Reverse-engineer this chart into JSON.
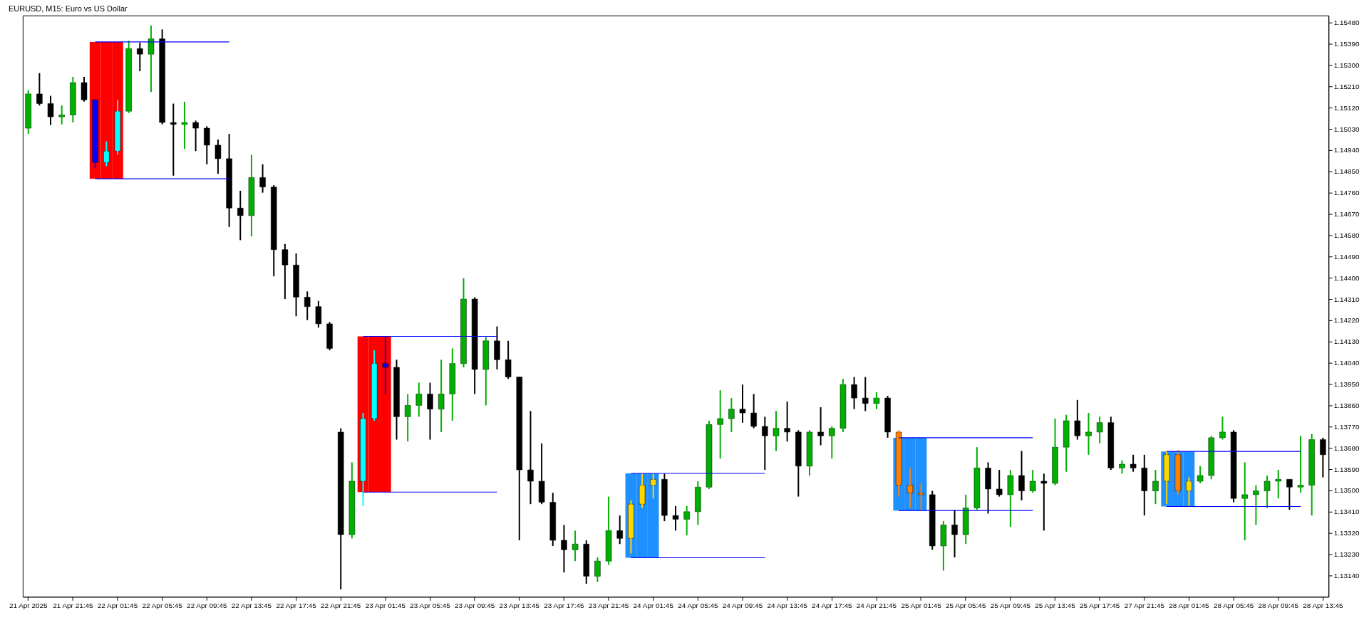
{
  "chart_data": {
    "type": "candlestick",
    "title": "EURUSD, M15:  Euro vs US Dollar",
    "ylim": [
      1.1305,
      1.1551
    ],
    "categories": [
      "21 Apr 2025",
      null,
      null,
      null,
      "21 Apr 21:45",
      null,
      null,
      null,
      "22 Apr 01:45",
      null,
      null,
      null,
      "22 Apr 05:45",
      null,
      null,
      null,
      "22 Apr 09:45",
      null,
      null,
      null,
      "22 Apr 13:45",
      null,
      null,
      null,
      "22 Apr 17:45",
      null,
      null,
      null,
      "22 Apr 21:45",
      null,
      null,
      null,
      "23 Apr 01:45",
      null,
      null,
      null,
      "23 Apr 05:45",
      null,
      null,
      null,
      "23 Apr 09:45",
      null,
      null,
      null,
      "23 Apr 13:45",
      null,
      null,
      null,
      "23 Apr 17:45",
      null,
      null,
      null,
      "23 Apr 21:45",
      null,
      null,
      null,
      "24 Apr 01:45",
      null,
      null,
      null,
      "24 Apr 05:45",
      null,
      null,
      null,
      "24 Apr 09:45",
      null,
      null,
      null,
      "24 Apr 13:45",
      null,
      null,
      null,
      "24 Apr 17:45",
      null,
      null,
      null,
      "24 Apr 21:45",
      null,
      null,
      null,
      "25 Apr 01:45",
      null,
      null,
      null,
      "25 Apr 05:45",
      null,
      null,
      null,
      "25 Apr 09:45",
      null,
      null,
      null,
      "25 Apr 13:45",
      null,
      null,
      null,
      "25 Apr 17:45",
      null,
      null,
      null,
      "27 Apr 21:45",
      null,
      null,
      null,
      "28 Apr 01:45",
      null,
      null,
      null,
      "28 Apr 05:45",
      null,
      null,
      null,
      "28 Apr 09:45",
      null,
      null,
      null,
      "28 Apr 13:45"
    ],
    "yticks": [
      {
        "value": 1.1314,
        "label": "1.13140"
      },
      {
        "value": 1.1323,
        "label": "1.13230"
      },
      {
        "value": 1.1332,
        "label": "1.13320"
      },
      {
        "value": 1.1341,
        "label": "1.13410"
      },
      {
        "value": 1.135,
        "label": "1.13500"
      },
      {
        "value": 1.1359,
        "label": "1.13590"
      },
      {
        "value": 1.1368,
        "label": "1.13680"
      },
      {
        "value": 1.1377,
        "label": "1.13770"
      },
      {
        "value": 1.1386,
        "label": "1.13860"
      },
      {
        "value": 1.1395,
        "label": "1.13950"
      },
      {
        "value": 1.1404,
        "label": "1.14040"
      },
      {
        "value": 1.1413,
        "label": "1.14130"
      },
      {
        "value": 1.1422,
        "label": "1.14220"
      },
      {
        "value": 1.1431,
        "label": "1.14310"
      },
      {
        "value": 1.144,
        "label": "1.14400"
      },
      {
        "value": 1.1449,
        "label": "1.14490"
      },
      {
        "value": 1.1458,
        "label": "1.14580"
      },
      {
        "value": 1.1467,
        "label": "1.14670"
      },
      {
        "value": 1.1476,
        "label": "1.14760"
      },
      {
        "value": 1.1485,
        "label": "1.14850"
      },
      {
        "value": 1.1494,
        "label": "1.14940"
      },
      {
        "value": 1.1503,
        "label": "1.15030"
      },
      {
        "value": 1.1512,
        "label": "1.15120"
      },
      {
        "value": 1.1521,
        "label": "1.15210"
      },
      {
        "value": 1.153,
        "label": "1.15300"
      },
      {
        "value": 1.1539,
        "label": "1.15390"
      },
      {
        "value": 1.1548,
        "label": "1.15480"
      }
    ],
    "ohlc": [
      [
        1.15033,
        1.15194,
        1.15009,
        1.15178
      ],
      [
        1.15178,
        1.15266,
        1.15129,
        1.15137
      ],
      [
        1.15137,
        1.1517,
        1.15046,
        1.15081
      ],
      [
        1.15081,
        1.15129,
        1.15049,
        1.15089
      ],
      [
        1.15089,
        1.1525,
        1.15057,
        1.15226
      ],
      [
        1.15226,
        1.1525,
        1.15145,
        1.15153
      ],
      [
        1.15153,
        1.15153,
        1.14864,
        1.14888
      ],
      [
        1.14888,
        1.14977,
        1.14872,
        1.14936
      ],
      [
        1.14936,
        1.15153,
        1.1492,
        1.15105
      ],
      [
        1.15105,
        1.15403,
        1.15097,
        1.1537
      ],
      [
        1.1537,
        1.15395,
        1.15274,
        1.15346
      ],
      [
        1.15346,
        1.15467,
        1.15186,
        1.15411
      ],
      [
        1.15411,
        1.15451,
        1.15049,
        1.15057
      ],
      [
        1.15057,
        1.15137,
        1.14832,
        1.15049
      ],
      [
        1.15049,
        1.15145,
        1.14945,
        1.15057
      ],
      [
        1.15057,
        1.15065,
        1.14936,
        1.15033
      ],
      [
        1.15033,
        1.15041,
        1.1488,
        1.14961
      ],
      [
        1.14961,
        1.14985,
        1.1484,
        1.14904
      ],
      [
        1.14904,
        1.15009,
        1.14615,
        1.14695
      ],
      [
        1.14695,
        1.14768,
        1.14559,
        1.14663
      ],
      [
        1.14663,
        1.1492,
        1.14575,
        1.14824
      ],
      [
        1.14824,
        1.1488,
        1.1476,
        1.14784
      ],
      [
        1.14784,
        1.14792,
        1.14406,
        1.14519
      ],
      [
        1.14519,
        1.14543,
        1.1431,
        1.14454
      ],
      [
        1.14454,
        1.14503,
        1.14237,
        1.14318
      ],
      [
        1.14318,
        1.14342,
        1.14221,
        1.14278
      ],
      [
        1.14278,
        1.14302,
        1.14189,
        1.14205
      ],
      [
        1.14205,
        1.14213,
        1.14093,
        1.14101
      ],
      [
        1.13747,
        1.13763,
        1.13081,
        1.13313
      ],
      [
        1.13313,
        1.13619,
        1.13297,
        1.13539
      ],
      [
        1.13539,
        1.13828,
        1.13434,
        1.13804
      ],
      [
        1.13804,
        1.14093,
        1.13795,
        1.14037
      ],
      [
        1.14037,
        1.14152,
        1.13908,
        1.14021
      ],
      [
        1.14021,
        1.14053,
        1.13715,
        1.13812
      ],
      [
        1.13812,
        1.13908,
        1.13707,
        1.1386
      ],
      [
        1.1386,
        1.13956,
        1.13812,
        1.13908
      ],
      [
        1.13908,
        1.13956,
        1.13715,
        1.13844
      ],
      [
        1.13844,
        1.14053,
        1.13747,
        1.13908
      ],
      [
        1.13908,
        1.14101,
        1.13795,
        1.14037
      ],
      [
        1.14037,
        1.14398,
        1.14021,
        1.1431
      ],
      [
        1.1431,
        1.14318,
        1.13908,
        1.14012
      ],
      [
        1.14012,
        1.14149,
        1.1386,
        1.14133
      ],
      [
        1.14133,
        1.14194,
        1.14012,
        1.14053
      ],
      [
        1.14053,
        1.14133,
        1.13972,
        1.1398
      ],
      [
        1.1398,
        1.1398,
        1.13289,
        1.13587
      ],
      [
        1.13587,
        1.13836,
        1.13442,
        1.13539
      ],
      [
        1.13539,
        1.13699,
        1.13442,
        1.1345
      ],
      [
        1.1345,
        1.1349,
        1.13265,
        1.13289
      ],
      [
        1.13289,
        1.13354,
        1.13153,
        1.13249
      ],
      [
        1.13249,
        1.1333,
        1.13201,
        1.13273
      ],
      [
        1.13273,
        1.13289,
        1.13105,
        1.13137
      ],
      [
        1.13137,
        1.13217,
        1.13113,
        1.13201
      ],
      [
        1.13201,
        1.13474,
        1.13185,
        1.1333
      ],
      [
        1.1333,
        1.13394,
        1.13273,
        1.13297
      ],
      [
        1.13297,
        1.13458,
        1.13233,
        1.13442
      ],
      [
        1.13442,
        1.13571,
        1.13426,
        1.13522
      ],
      [
        1.13522,
        1.13571,
        1.13466,
        1.13547
      ],
      [
        1.13547,
        1.13571,
        1.1337,
        1.13394
      ],
      [
        1.13394,
        1.13434,
        1.1333,
        1.13378
      ],
      [
        1.13378,
        1.13434,
        1.1331,
        1.1341
      ],
      [
        1.1341,
        1.13539,
        1.13354,
        1.13514
      ],
      [
        1.13514,
        1.13795,
        1.13506,
        1.13779
      ],
      [
        1.13779,
        1.13924,
        1.13635,
        1.13804
      ],
      [
        1.13804,
        1.13891,
        1.13747,
        1.13844
      ],
      [
        1.13844,
        1.13948,
        1.13787,
        1.13828
      ],
      [
        1.13828,
        1.13908,
        1.13763,
        1.13771
      ],
      [
        1.13771,
        1.13812,
        1.13587,
        1.13731
      ],
      [
        1.13731,
        1.13836,
        1.13667,
        1.13763
      ],
      [
        1.13763,
        1.13876,
        1.13707,
        1.13747
      ],
      [
        1.13747,
        1.13755,
        1.13474,
        1.13603
      ],
      [
        1.13603,
        1.13755,
        1.13563,
        1.13747
      ],
      [
        1.13747,
        1.13852,
        1.13691,
        1.13731
      ],
      [
        1.13731,
        1.13771,
        1.13635,
        1.13763
      ],
      [
        1.13763,
        1.13972,
        1.13747,
        1.13948
      ],
      [
        1.13948,
        1.1398,
        1.13844,
        1.13891
      ],
      [
        1.13891,
        1.1398,
        1.13836,
        1.13868
      ],
      [
        1.13868,
        1.13916,
        1.13844,
        1.13891
      ],
      [
        1.13891,
        1.139,
        1.13723,
        1.13747
      ],
      [
        1.13747,
        1.13755,
        1.13474,
        1.13522
      ],
      [
        1.13522,
        1.13595,
        1.13426,
        1.1349
      ],
      [
        1.1349,
        1.1353,
        1.13418,
        1.13482
      ],
      [
        1.13482,
        1.13498,
        1.13249,
        1.13265
      ],
      [
        1.13265,
        1.1337,
        1.13161,
        1.13354
      ],
      [
        1.13354,
        1.13418,
        1.13217,
        1.13313
      ],
      [
        1.13313,
        1.13482,
        1.13273,
        1.13426
      ],
      [
        1.13426,
        1.13683,
        1.13418,
        1.13595
      ],
      [
        1.13595,
        1.13619,
        1.13402,
        1.13506
      ],
      [
        1.13506,
        1.13587,
        1.13474,
        1.13482
      ],
      [
        1.13482,
        1.13587,
        1.13346,
        1.13563
      ],
      [
        1.13563,
        1.13667,
        1.13458,
        1.13498
      ],
      [
        1.13498,
        1.13587,
        1.1349,
        1.13539
      ],
      [
        1.13539,
        1.13571,
        1.1333,
        1.1353
      ],
      [
        1.1353,
        1.13804,
        1.13522,
        1.13683
      ],
      [
        1.13683,
        1.1382,
        1.13579,
        1.13795
      ],
      [
        1.13795,
        1.13883,
        1.13715,
        1.13731
      ],
      [
        1.13731,
        1.13828,
        1.13651,
        1.13747
      ],
      [
        1.13747,
        1.13812,
        1.13699,
        1.13787
      ],
      [
        1.13787,
        1.13812,
        1.13587,
        1.13595
      ],
      [
        1.13595,
        1.13627,
        1.13571,
        1.13611
      ],
      [
        1.13611,
        1.13651,
        1.13579,
        1.13595
      ],
      [
        1.13595,
        1.13651,
        1.13394,
        1.13498
      ],
      [
        1.13498,
        1.13587,
        1.13442,
        1.13539
      ],
      [
        1.13539,
        1.13667,
        1.13442,
        1.13651
      ],
      [
        1.13651,
        1.1367,
        1.13482,
        1.13498
      ],
      [
        1.13498,
        1.13555,
        1.13434,
        1.13539
      ],
      [
        1.13539,
        1.13603,
        1.1353,
        1.13563
      ],
      [
        1.13563,
        1.13731,
        1.13547,
        1.13723
      ],
      [
        1.13723,
        1.13812,
        1.13715,
        1.13747
      ],
      [
        1.13747,
        1.13755,
        1.1345,
        1.13466
      ],
      [
        1.13466,
        1.13619,
        1.13289,
        1.13482
      ],
      [
        1.13482,
        1.13522,
        1.13354,
        1.13498
      ],
      [
        1.13498,
        1.13563,
        1.13426,
        1.13539
      ],
      [
        1.13539,
        1.13587,
        1.13466,
        1.13547
      ],
      [
        1.13547,
        1.13547,
        1.13418,
        1.13514
      ],
      [
        1.13514,
        1.13731,
        1.1349,
        1.13522
      ],
      [
        1.13522,
        1.13739,
        1.13394,
        1.13715
      ],
      [
        1.13715,
        1.13723,
        1.13555,
        1.13651
      ]
    ],
    "colors": [
      "#00b000",
      "#000000",
      "#000000",
      "#00b000",
      "#00b000",
      "#000000",
      "#0000ff",
      "#00ffff",
      "#00ffff",
      "#00b000",
      "#000000",
      "#00b000",
      "#000000",
      "#000000",
      "#00b000",
      "#000000",
      "#000000",
      "#000000",
      "#000000",
      "#000000",
      "#00b000",
      "#000000",
      "#000000",
      "#000000",
      "#000000",
      "#000000",
      "#000000",
      "#000000",
      "#000000",
      "#00b000",
      "#00ffff",
      "#00ffff",
      "#0000ff",
      "#000000",
      "#00b000",
      "#00b000",
      "#000000",
      "#00b000",
      "#00b000",
      "#00b000",
      "#000000",
      "#00b000",
      "#000000",
      "#000000",
      "#000000",
      "#000000",
      "#000000",
      "#000000",
      "#000000",
      "#00b000",
      "#000000",
      "#00b000",
      "#00b000",
      "#000000",
      "#ffd700",
      "#ffd700",
      "#ffd700",
      "#000000",
      "#000000",
      "#00b000",
      "#00b000",
      "#00b000",
      "#00b000",
      "#00b000",
      "#000000",
      "#000000",
      "#000000",
      "#00b000",
      "#000000",
      "#000000",
      "#00b000",
      "#000000",
      "#00b000",
      "#00b000",
      "#000000",
      "#000000",
      "#00b000",
      "#000000",
      "#ff8000",
      "#ff8000",
      "#ff8000",
      "#000000",
      "#00b000",
      "#000000",
      "#00b000",
      "#00b000",
      "#000000",
      "#000000",
      "#00b000",
      "#000000",
      "#00b000",
      "#000000",
      "#00b000",
      "#00b000",
      "#000000",
      "#00b000",
      "#00b000",
      "#000000",
      "#00b000",
      "#000000",
      "#000000",
      "#00b000",
      "#ffd700",
      "#ff8000",
      "#ffd700",
      "#00b000",
      "#00b000",
      "#00b000",
      "#000000",
      "#00b000",
      "#00b000",
      "#00b000",
      "#00b000",
      "#000000",
      "#00b000",
      "#00b000",
      "#000000"
    ],
    "series": [
      {
        "type": "bar",
        "color": "#ff0000",
        "values": [
          null,
          null,
          null,
          null,
          null,
          null,
          0.00579,
          0.00579,
          0.00579,
          null,
          null,
          null,
          null,
          null,
          null,
          null,
          null,
          null,
          null,
          null,
          null,
          null,
          null,
          null,
          null,
          null,
          null,
          null,
          null,
          null,
          0.00659,
          0.00659,
          0.00659,
          null,
          null,
          null,
          null,
          null,
          null,
          null,
          null,
          null,
          null,
          null,
          null,
          null,
          null,
          null,
          null,
          null,
          null,
          null,
          null,
          null,
          null,
          null,
          null,
          null,
          null,
          null,
          null,
          null,
          null,
          null,
          null,
          null,
          null,
          null,
          null,
          null,
          null,
          null,
          null,
          null,
          null,
          null,
          null,
          null,
          null,
          null,
          null,
          null,
          null,
          null,
          null,
          null,
          null,
          null,
          null,
          null,
          null,
          null,
          null,
          null,
          null,
          null,
          null,
          null,
          null,
          null,
          null,
          null,
          null,
          null,
          null,
          null,
          null,
          null,
          null,
          null,
          null,
          null,
          null,
          null,
          null,
          null,
          null
        ],
        "base": [
          null,
          null,
          null,
          null,
          null,
          null,
          1.14819,
          1.14819,
          1.14819,
          null,
          null,
          null,
          null,
          null,
          null,
          null,
          null,
          null,
          null,
          null,
          null,
          null,
          null,
          null,
          null,
          null,
          null,
          null,
          null,
          null,
          1.13493,
          1.13493,
          1.13493,
          null,
          null,
          null,
          null,
          null,
          null,
          null,
          null,
          null,
          null,
          null,
          null,
          null,
          null,
          null,
          null,
          null,
          null,
          null,
          null,
          null,
          null,
          null,
          null,
          null,
          null,
          null,
          null,
          null,
          null,
          null,
          null,
          null,
          null,
          null,
          null,
          null,
          null,
          null,
          null,
          null,
          null,
          null,
          null,
          null,
          null,
          null,
          null,
          null,
          null,
          null,
          null,
          null,
          null,
          null,
          null,
          null,
          null,
          null,
          null,
          null,
          null,
          null,
          null,
          null,
          null,
          null,
          null,
          null,
          null,
          null,
          null,
          null,
          null,
          null,
          null,
          null,
          null,
          null,
          null,
          null,
          null,
          null,
          null
        ]
      },
      {
        "type": "bar",
        "color": "#1e90ff",
        "values": [
          null,
          null,
          null,
          null,
          null,
          null,
          null,
          null,
          null,
          null,
          null,
          null,
          null,
          null,
          null,
          null,
          null,
          null,
          null,
          null,
          null,
          null,
          null,
          null,
          null,
          null,
          null,
          null,
          null,
          null,
          null,
          null,
          null,
          null,
          null,
          null,
          null,
          null,
          null,
          null,
          null,
          null,
          null,
          null,
          null,
          null,
          null,
          null,
          null,
          null,
          null,
          null,
          null,
          null,
          0.00357,
          0.00357,
          0.00357,
          null,
          null,
          null,
          null,
          null,
          null,
          null,
          null,
          null,
          null,
          null,
          null,
          null,
          null,
          null,
          null,
          null,
          null,
          null,
          null,
          null,
          0.00308,
          0.00308,
          0.00308,
          null,
          null,
          null,
          null,
          null,
          null,
          null,
          null,
          null,
          null,
          null,
          null,
          null,
          null,
          null,
          null,
          null,
          null,
          null,
          null,
          null,
          0.00233,
          0.00233,
          0.00233,
          null,
          null,
          null,
          null,
          null,
          null,
          null,
          null,
          null,
          null,
          null,
          null
        ],
        "base": [
          null,
          null,
          null,
          null,
          null,
          null,
          null,
          null,
          null,
          null,
          null,
          null,
          null,
          null,
          null,
          null,
          null,
          null,
          null,
          null,
          null,
          null,
          null,
          null,
          null,
          null,
          null,
          null,
          null,
          null,
          null,
          null,
          null,
          null,
          null,
          null,
          null,
          null,
          null,
          null,
          null,
          null,
          null,
          null,
          null,
          null,
          null,
          null,
          null,
          null,
          null,
          null,
          null,
          null,
          1.13215,
          1.13215,
          1.13215,
          null,
          null,
          null,
          null,
          null,
          null,
          null,
          null,
          null,
          null,
          null,
          null,
          null,
          null,
          null,
          null,
          null,
          null,
          null,
          null,
          null,
          1.13415,
          1.13415,
          1.13415,
          null,
          null,
          null,
          null,
          null,
          null,
          null,
          null,
          null,
          null,
          null,
          null,
          null,
          null,
          null,
          null,
          null,
          null,
          null,
          null,
          null,
          1.13432,
          1.13432,
          1.13432,
          null,
          null,
          null,
          null,
          null,
          null,
          null,
          null,
          null,
          null,
          null,
          null
        ]
      },
      {
        "type": "line",
        "color": "#0000ff",
        "values": [
          null,
          null,
          null,
          null,
          null,
          null,
          1.15398,
          1.15398,
          1.15398,
          1.15398,
          1.15398,
          1.15398,
          1.15398,
          1.15398,
          1.15398,
          1.15398,
          1.15398,
          1.15398,
          1.15398,
          null,
          null,
          null,
          null,
          null,
          null,
          null,
          null,
          null,
          null,
          null,
          1.14152,
          1.14152,
          1.14152,
          1.14152,
          1.14152,
          1.14152,
          1.14152,
          1.14152,
          1.14152,
          1.14152,
          1.14152,
          1.14152,
          1.14152,
          null,
          null,
          null,
          null,
          null,
          null,
          null,
          null,
          null,
          null,
          null,
          1.13572,
          1.13572,
          1.13572,
          1.13572,
          1.13572,
          1.13572,
          1.13572,
          1.13572,
          1.13572,
          1.13572,
          1.13572,
          1.13572,
          1.13572,
          null,
          null,
          null,
          null,
          null,
          null,
          null,
          null,
          null,
          null,
          null,
          1.13723,
          1.13723,
          1.13723,
          1.13723,
          1.13723,
          1.13723,
          1.13723,
          1.13723,
          1.13723,
          1.13723,
          1.13723,
          1.13723,
          1.13723,
          null,
          null,
          null,
          null,
          null,
          null,
          null,
          null,
          null,
          null,
          null,
          1.13665,
          1.13665,
          1.13665,
          1.13665,
          1.13665,
          1.13665,
          1.13665,
          1.13665,
          1.13665,
          1.13665,
          1.13665,
          1.13665,
          1.13665,
          null,
          null
        ]
      },
      {
        "type": "line",
        "color": "#0000ff",
        "values": [
          null,
          null,
          null,
          null,
          null,
          null,
          1.14819,
          1.14819,
          1.14819,
          1.14819,
          1.14819,
          1.14819,
          1.14819,
          1.14819,
          1.14819,
          1.14819,
          1.14819,
          1.14819,
          1.14819,
          null,
          null,
          null,
          null,
          null,
          null,
          null,
          null,
          null,
          null,
          null,
          1.13493,
          1.13493,
          1.13493,
          1.13493,
          1.13493,
          1.13493,
          1.13493,
          1.13493,
          1.13493,
          1.13493,
          1.13493,
          1.13493,
          1.13493,
          null,
          null,
          null,
          null,
          null,
          null,
          null,
          null,
          null,
          null,
          null,
          1.13215,
          1.13215,
          1.13215,
          1.13215,
          1.13215,
          1.13215,
          1.13215,
          1.13215,
          1.13215,
          1.13215,
          1.13215,
          1.13215,
          1.13215,
          null,
          null,
          null,
          null,
          null,
          null,
          null,
          null,
          null,
          null,
          null,
          1.13415,
          1.13415,
          1.13415,
          1.13415,
          1.13415,
          1.13415,
          1.13415,
          1.13415,
          1.13415,
          1.13415,
          1.13415,
          1.13415,
          1.13415,
          null,
          null,
          null,
          null,
          null,
          null,
          null,
          null,
          null,
          null,
          null,
          1.13432,
          1.13432,
          1.13432,
          1.13432,
          1.13432,
          1.13432,
          1.13432,
          1.13432,
          1.13432,
          1.13432,
          1.13432,
          1.13432,
          1.13432,
          null,
          null
        ]
      }
    ],
    "grid": false
  }
}
